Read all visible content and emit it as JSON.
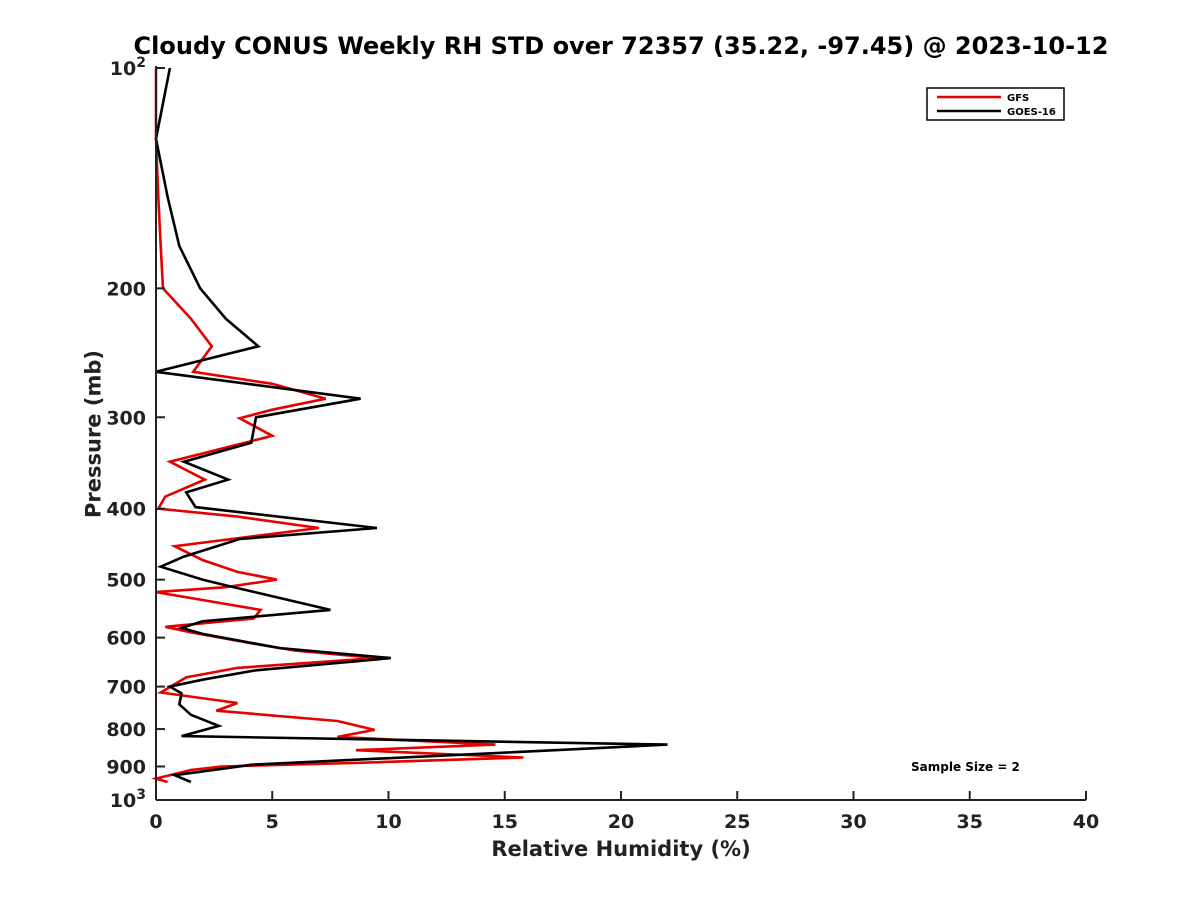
{
  "chart_data": {
    "type": "line",
    "title": "Cloudy CONUS Weekly RH STD over 72357 (35.22, -97.45) @ 2023-10-12",
    "xlabel": "Relative Humidity (%)",
    "ylabel": "Pressure (mb)",
    "xlim": [
      0,
      40
    ],
    "ylim": [
      100,
      1000
    ],
    "y_scale": "log",
    "y_inverted": true,
    "x_ticks": [
      "0",
      "5",
      "10",
      "15",
      "20",
      "25",
      "30",
      "35",
      "40"
    ],
    "y_ticks": [
      {
        "value": 100,
        "label": "10",
        "sup": "2"
      },
      {
        "value": 200,
        "label": "200"
      },
      {
        "value": 300,
        "label": "300"
      },
      {
        "value": 400,
        "label": "400"
      },
      {
        "value": 500,
        "label": "500"
      },
      {
        "value": 600,
        "label": "600"
      },
      {
        "value": 700,
        "label": "700"
      },
      {
        "value": 800,
        "label": "800"
      },
      {
        "value": 900,
        "label": "900"
      },
      {
        "value": 1000,
        "label": "10",
        "sup": "3"
      }
    ],
    "grid": false,
    "legend_position": "top-right",
    "annotation": "Sample Size = 2",
    "series": [
      {
        "name": "GFS",
        "color": "#e60000",
        "points": [
          [
            0,
            100
          ],
          [
            0,
            125
          ],
          [
            0.1,
            150
          ],
          [
            0.2,
            175
          ],
          [
            0.3,
            200
          ],
          [
            1.5,
            220
          ],
          [
            2.4,
            240
          ],
          [
            1.6,
            260
          ],
          [
            5,
            270
          ],
          [
            7.3,
            283
          ],
          [
            5,
            293
          ],
          [
            3.6,
            301
          ],
          [
            5,
            318
          ],
          [
            0.6,
            345
          ],
          [
            2.1,
            365
          ],
          [
            0.4,
            385
          ],
          [
            0.1,
            400
          ],
          [
            3.5,
            410
          ],
          [
            7,
            425
          ],
          [
            0.8,
            450
          ],
          [
            2,
            470
          ],
          [
            3.5,
            488
          ],
          [
            5.2,
            500
          ],
          [
            3,
            512
          ],
          [
            0,
            520
          ],
          [
            4.5,
            550
          ],
          [
            4.2,
            565
          ],
          [
            0.4,
            580
          ],
          [
            1.5,
            590
          ],
          [
            4,
            610
          ],
          [
            6,
            625
          ],
          [
            9.5,
            640
          ],
          [
            3.5,
            660
          ],
          [
            1.3,
            680
          ],
          [
            0.2,
            713
          ],
          [
            3.5,
            737
          ],
          [
            2.6,
            755
          ],
          [
            7.8,
            780
          ],
          [
            9.4,
            802
          ],
          [
            7.8,
            820
          ],
          [
            14.6,
            840
          ],
          [
            8.6,
            855
          ],
          [
            15.8,
            875
          ],
          [
            8.5,
            890
          ],
          [
            2.8,
            900
          ],
          [
            1.5,
            910
          ],
          [
            0,
            935
          ],
          [
            0.5,
            945
          ]
        ]
      },
      {
        "name": "GOES-16",
        "color": "#000000",
        "points": [
          [
            0.6,
            100
          ],
          [
            0,
            125
          ],
          [
            0.5,
            150
          ],
          [
            1,
            175
          ],
          [
            1.9,
            200
          ],
          [
            3,
            220
          ],
          [
            4.4,
            240
          ],
          [
            0,
            260
          ],
          [
            8.8,
            283
          ],
          [
            4.3,
            300
          ],
          [
            4.1,
            325
          ],
          [
            1.2,
            345
          ],
          [
            3.1,
            365
          ],
          [
            1.3,
            380
          ],
          [
            1.7,
            398
          ],
          [
            9.5,
            425
          ],
          [
            3.6,
            440
          ],
          [
            1.2,
            465
          ],
          [
            0.2,
            480
          ],
          [
            2,
            500
          ],
          [
            3.1,
            510
          ],
          [
            7.5,
            550
          ],
          [
            2,
            570
          ],
          [
            1.1,
            582
          ],
          [
            2,
            593
          ],
          [
            5.3,
            620
          ],
          [
            10.1,
            640
          ],
          [
            4.3,
            665
          ],
          [
            2,
            685
          ],
          [
            0.6,
            700
          ],
          [
            1.1,
            715
          ],
          [
            1,
            740
          ],
          [
            1.5,
            765
          ],
          [
            2.7,
            792
          ],
          [
            1.1,
            818
          ],
          [
            22,
            840
          ],
          [
            15.5,
            860
          ],
          [
            4.1,
            895
          ],
          [
            3,
            905
          ],
          [
            0.8,
            925
          ],
          [
            1.5,
            945
          ]
        ]
      }
    ]
  }
}
